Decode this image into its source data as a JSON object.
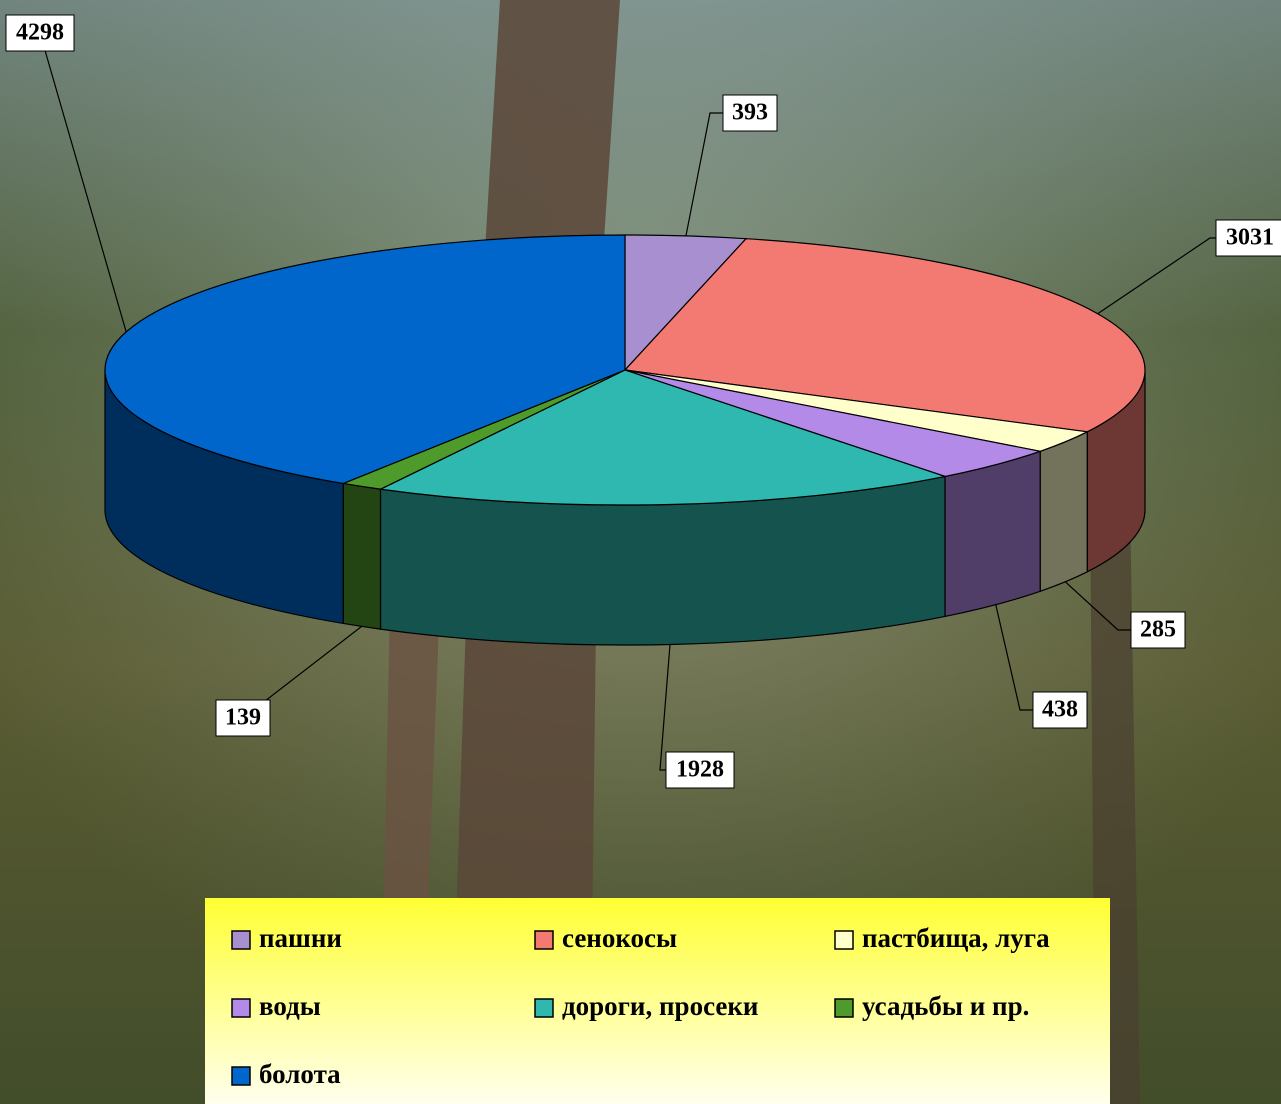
{
  "chart_data": {
    "type": "pie",
    "categories": [
      "пашни",
      "сенокосы",
      "пастбища, луга",
      "воды",
      "дороги, просеки",
      "усадьбы и пр.",
      "болота"
    ],
    "values": [
      393,
      3031,
      285,
      438,
      1928,
      139,
      4298
    ],
    "colors": [
      "#a88fd0",
      "#f27a72",
      "#ffffcc",
      "#b48ae8",
      "#2fb8b0",
      "#4e9a2a",
      "#0066cc"
    ],
    "legend": "bottom"
  }
}
